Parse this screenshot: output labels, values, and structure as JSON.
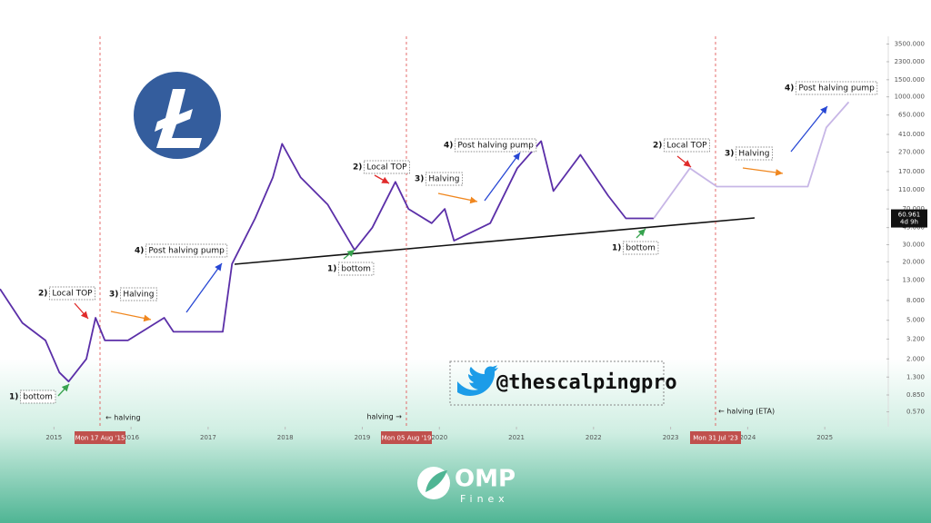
{
  "chart_data": {
    "type": "line",
    "log_scale": true,
    "xlim": [
      2014.3,
      2025.8
    ],
    "xticks": [
      2015,
      2016,
      2017,
      2018,
      2019,
      2020,
      2021,
      2022,
      2023,
      2024,
      2025
    ],
    "ylim": [
      0.4,
      4200
    ],
    "yticks": [
      {
        "value": 0.57,
        "label": "0.570"
      },
      {
        "value": 0.85,
        "label": "0.850"
      },
      {
        "value": 1.3,
        "label": "1.300"
      },
      {
        "value": 2,
        "label": "2.000"
      },
      {
        "value": 3.2,
        "label": "3.200"
      },
      {
        "value": 5,
        "label": "5.000"
      },
      {
        "value": 8,
        "label": "8.000"
      },
      {
        "value": 13,
        "label": "13.000"
      },
      {
        "value": 20,
        "label": "20.000"
      },
      {
        "value": 30,
        "label": "30.000"
      },
      {
        "value": 45,
        "label": "45.000"
      },
      {
        "value": 70,
        "label": "70.000"
      },
      {
        "value": 110,
        "label": "110.000"
      },
      {
        "value": 170,
        "label": "170.000"
      },
      {
        "value": 270,
        "label": "270.000"
      },
      {
        "value": 410,
        "label": "410.000"
      },
      {
        "value": 650,
        "label": "650.000"
      },
      {
        "value": 1000,
        "label": "1000.000"
      },
      {
        "value": 1500,
        "label": "1500.000"
      },
      {
        "value": 2300,
        "label": "2300.000"
      },
      {
        "value": 3500,
        "label": "3500.000"
      }
    ],
    "x": [
      2014.3,
      2014.59,
      2014.89,
      2015.07,
      2015.19,
      2015.42,
      2015.54,
      2015.66,
      2015.96,
      2016.43,
      2016.55,
      2017.19,
      2017.31,
      2017.61,
      2017.84,
      2017.96,
      2018.2,
      2018.55,
      2018.9,
      2019.13,
      2019.43,
      2019.6,
      2019.9,
      2020.07,
      2020.19,
      2020.66,
      2021.01,
      2021.32,
      2021.48,
      2021.83,
      2022.19,
      2022.42,
      2022.78,
      2023.25,
      2023.6,
      2024.78,
      2025.02,
      2025.31
    ],
    "series": [
      {
        "color": "#5b2fa8",
        "values": [
          10.5,
          4.7,
          3.1,
          1.45,
          1.17,
          2.0,
          5.3,
          3.1,
          3.1,
          5.3,
          3.8,
          3.8,
          19,
          56,
          148,
          328,
          148,
          78,
          26.5,
          45,
          133,
          70,
          50,
          70,
          33,
          50,
          184,
          350,
          107,
          253,
          96,
          56,
          56,
          null,
          null,
          null,
          null,
          null
        ]
      },
      {
        "color": "#c7b6e6",
        "values": [
          null,
          null,
          null,
          null,
          null,
          null,
          null,
          null,
          null,
          null,
          null,
          null,
          null,
          null,
          null,
          null,
          null,
          null,
          null,
          null,
          null,
          null,
          null,
          null,
          null,
          null,
          null,
          null,
          null,
          null,
          null,
          null,
          56,
          184,
          119,
          119,
          483,
          883
        ]
      }
    ],
    "current_price": 60.961,
    "countdown": "4d 9h",
    "halvings": [
      {
        "date": "Mon 17 Aug '15",
        "label": "← halving"
      },
      {
        "date": "Mon 05 Aug '19",
        "label": "halving →"
      },
      {
        "date": "Mon 31 Jul '23",
        "label": "← halving (ETA)"
      }
    ],
    "annotations": [
      {
        "step": "1)",
        "text": "bottom",
        "color": "#38a34f"
      },
      {
        "step": "2)",
        "text": "Local TOP",
        "color": "#e02b2b"
      },
      {
        "step": "3)",
        "text": "Halving",
        "color": "#f0871f"
      },
      {
        "step": "4)",
        "text": "Post halving pump",
        "color": "#2747d4"
      },
      {
        "step": "1)",
        "text": "bottom",
        "color": "#38a34f"
      },
      {
        "step": "2)",
        "text": "Local TOP",
        "color": "#e02b2b"
      },
      {
        "step": "3)",
        "text": "Halving",
        "color": "#f0871f"
      },
      {
        "step": "4)",
        "text": "Post halving pump",
        "color": "#2747d4"
      },
      {
        "step": "1)",
        "text": "bottom",
        "color": "#38a34f"
      },
      {
        "step": "2)",
        "text": "Local TOP",
        "color": "#e02b2b"
      },
      {
        "step": "3)",
        "text": "Halving",
        "color": "#f0871f"
      },
      {
        "step": "4)",
        "text": "Post halving pump",
        "color": "#2747d4"
      }
    ]
  },
  "watermark": {
    "handle": "@thescalpingpro"
  },
  "brand": {
    "name": "OMP",
    "sub": "Finex"
  }
}
